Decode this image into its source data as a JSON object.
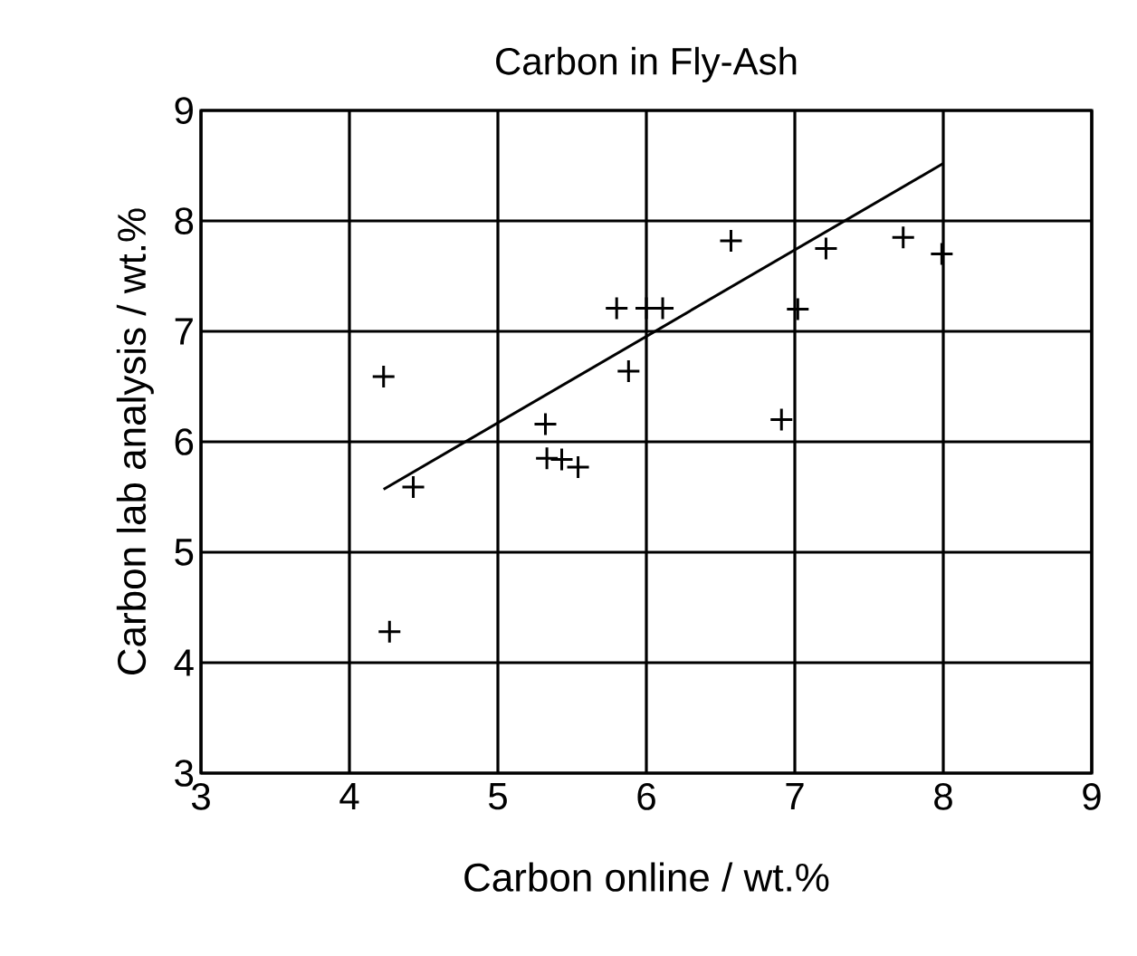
{
  "chart_data": {
    "type": "scatter",
    "title": "Carbon in Fly-Ash",
    "xlabel": "Carbon online / wt.%",
    "ylabel": "Carbon lab analysis / wt.%",
    "xlim": [
      3,
      9
    ],
    "ylim": [
      3,
      9
    ],
    "xticks": [
      3,
      4,
      5,
      6,
      7,
      8,
      9
    ],
    "yticks": [
      3,
      4,
      5,
      6,
      7,
      8,
      9
    ],
    "grid": true,
    "series": [
      {
        "marker": "cross",
        "color": "#000000",
        "x": [
          4.23,
          4.43,
          4.27,
          5.32,
          5.33,
          5.43,
          5.54,
          5.88,
          5.8,
          6.0,
          6.11,
          6.57,
          6.91,
          7.02,
          7.21,
          7.73,
          7.99
        ],
        "values": [
          6.59,
          5.59,
          4.28,
          6.16,
          5.85,
          5.84,
          5.77,
          6.64,
          7.21,
          7.21,
          7.21,
          7.82,
          6.2,
          7.2,
          7.75,
          7.85,
          7.7
        ]
      },
      {
        "type": "line",
        "color": "#000000",
        "x": [
          4.23,
          8.0
        ],
        "values": [
          5.57,
          8.52
        ]
      }
    ]
  }
}
